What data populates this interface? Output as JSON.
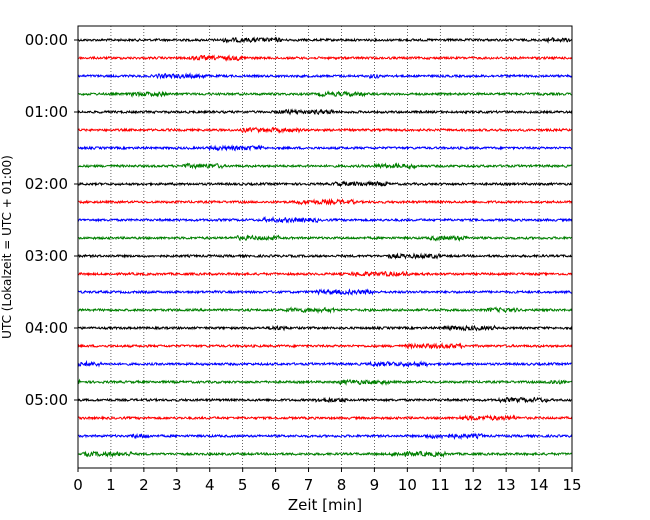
{
  "chart_data": {
    "type": "line",
    "title": "",
    "xlabel": "Zeit  [min]",
    "ylabel": "UTC (Lokalzeit = UTC + 01:00)",
    "xlim": [
      0,
      15
    ],
    "x_ticks": [
      "0",
      "1",
      "2",
      "3",
      "4",
      "5",
      "6",
      "7",
      "8",
      "9",
      "10",
      "11",
      "12",
      "13",
      "14",
      "15"
    ],
    "y_ticks": [
      "00:00",
      "01:00",
      "02:00",
      "03:00",
      "04:00",
      "05:00"
    ],
    "traces_per_hour": 4,
    "trace_interval_min": 15,
    "trace_count": 24,
    "trace_colors": [
      "#000000",
      "#ff0000",
      "#0000ff",
      "#008000"
    ],
    "grid_x": true,
    "legend": "none"
  }
}
